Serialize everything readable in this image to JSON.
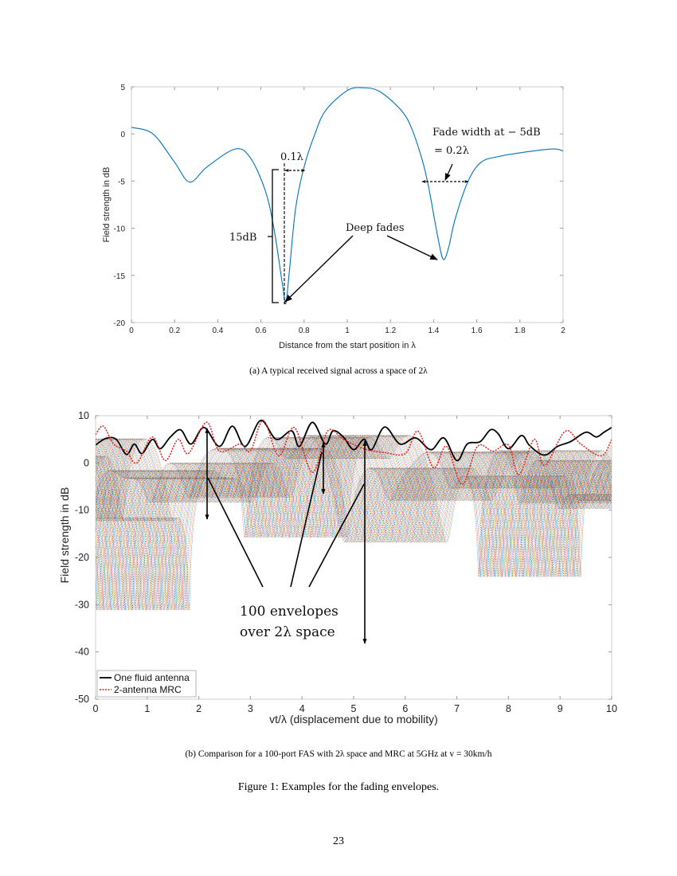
{
  "chart_data": [
    {
      "type": "line",
      "xlabel": "Distance from the start position in λ",
      "ylabel": "Field strength in dB",
      "xlim": [
        0,
        2
      ],
      "ylim": [
        -20,
        5
      ],
      "xticks": [
        "0",
        "0.2",
        "0.4",
        "0.6",
        "0.8",
        "1",
        "1.2",
        "1.4",
        "1.6",
        "1.8",
        "2"
      ],
      "yticks": [
        "5",
        "0",
        "-5",
        "-10",
        "-15",
        "-20"
      ],
      "grid": false,
      "series": [
        {
          "color": "#0072BD",
          "x": [
            0,
            0.1,
            0.2,
            0.27,
            0.35,
            0.48,
            0.55,
            0.62,
            0.66,
            0.7,
            0.715,
            0.73,
            0.76,
            0.8,
            0.85,
            0.9,
            1.0,
            1.07,
            1.15,
            1.25,
            1.3,
            1.35,
            1.38,
            1.42,
            1.445,
            1.47,
            1.5,
            1.56,
            1.62,
            1.7,
            1.8,
            1.95,
            2.0
          ],
          "y": [
            0.7,
            0,
            -3,
            -5.1,
            -3.5,
            -1.6,
            -2.5,
            -6,
            -10,
            -16,
            -18,
            -15,
            -8,
            -3.5,
            0,
            2.5,
            4.6,
            4.9,
            4.5,
            2.5,
            0.5,
            -3,
            -6,
            -11,
            -13.3,
            -12,
            -9,
            -5,
            -3,
            -2.4,
            -2,
            -1.6,
            -1.8
          ]
        }
      ],
      "annotations": {
        "width_label": "0.1λ",
        "fade_width_line1": "Fade width at − 5dB",
        "fade_width_line2": "= 0.2λ",
        "depth_label": "15dB",
        "deep_fades": "Deep fades"
      },
      "caption": "(a) A typical received signal across a space of 2λ"
    },
    {
      "type": "line",
      "xlabel": "vt/λ (displacement due to mobility)",
      "ylabel": "Field strength in dB",
      "xlim": [
        0,
        10
      ],
      "ylim": [
        -50,
        10
      ],
      "xticks": [
        "0",
        "1",
        "2",
        "3",
        "4",
        "5",
        "6",
        "7",
        "8",
        "9",
        "10"
      ],
      "yticks": [
        "10",
        "0",
        "-10",
        "-20",
        "-30",
        "-40",
        "-50"
      ],
      "grid": false,
      "legend_placement": "bottom-left",
      "series": [
        {
          "name": "One fluid antenna",
          "color": "#000000",
          "x": [
            0,
            0.2,
            0.4,
            0.6,
            0.75,
            0.9,
            1.1,
            1.25,
            1.45,
            1.65,
            1.85,
            2.1,
            2.4,
            2.65,
            2.9,
            3.2,
            3.5,
            3.8,
            3.95,
            4.2,
            4.45,
            4.6,
            4.8,
            5.0,
            5.2,
            5.35,
            5.6,
            5.9,
            6.2,
            6.5,
            6.75,
            7.0,
            7.2,
            7.45,
            7.65,
            7.8,
            8.0,
            8.25,
            8.4,
            8.6,
            8.75,
            8.95,
            9.2,
            9.5,
            9.7,
            9.85,
            10
          ],
          "y": [
            3.8,
            5.2,
            5,
            1.8,
            4,
            2,
            5,
            3,
            5.5,
            7,
            4,
            7.5,
            3.5,
            7.8,
            3.5,
            9,
            5,
            6.8,
            3.5,
            8.6,
            4,
            6.8,
            5.5,
            2.8,
            5,
            2.8,
            7.6,
            4,
            5.3,
            2.8,
            5.3,
            0.5,
            4,
            4.5,
            7,
            6.2,
            3,
            5.8,
            3.8,
            2,
            1.8,
            3.5,
            4.5,
            6.5,
            5.5,
            6.5,
            7.5
          ]
        },
        {
          "name": "2-antenna MRC",
          "color": "#E0201B",
          "x": [
            0,
            0.15,
            0.35,
            0.6,
            0.8,
            1.1,
            1.35,
            1.6,
            1.8,
            2.15,
            2.4,
            2.8,
            3.0,
            3.25,
            3.55,
            3.85,
            4.2,
            4.5,
            4.8,
            5.2,
            5.6,
            6.0,
            6.25,
            6.55,
            6.8,
            7.1,
            7.4,
            7.7,
            8.0,
            8.2,
            8.5,
            8.7,
            9.1,
            9.4,
            9.8,
            10
          ],
          "y": [
            6,
            7.8,
            4,
            2.5,
            0,
            5.5,
            0.5,
            5,
            2,
            8.6,
            2.5,
            4,
            2.5,
            9,
            1.5,
            7.5,
            -2,
            6.8,
            5,
            3,
            2.2,
            2,
            6.7,
            -1,
            3.5,
            -4.5,
            3.5,
            2.5,
            3.8,
            -2.5,
            5,
            -0.5,
            6.7,
            4,
            1.5,
            5
          ]
        }
      ],
      "envelope_count": 100,
      "annotations": {
        "line1": "100 envelopes",
        "line2": "over 2λ space"
      },
      "caption": "(b) Comparison for a 100-port FAS with 2λ space and MRC at 5GHz at v = 30km/h"
    }
  ],
  "figure_caption": "Figure 1: Examples for the fading envelopes.",
  "page_number": "23"
}
